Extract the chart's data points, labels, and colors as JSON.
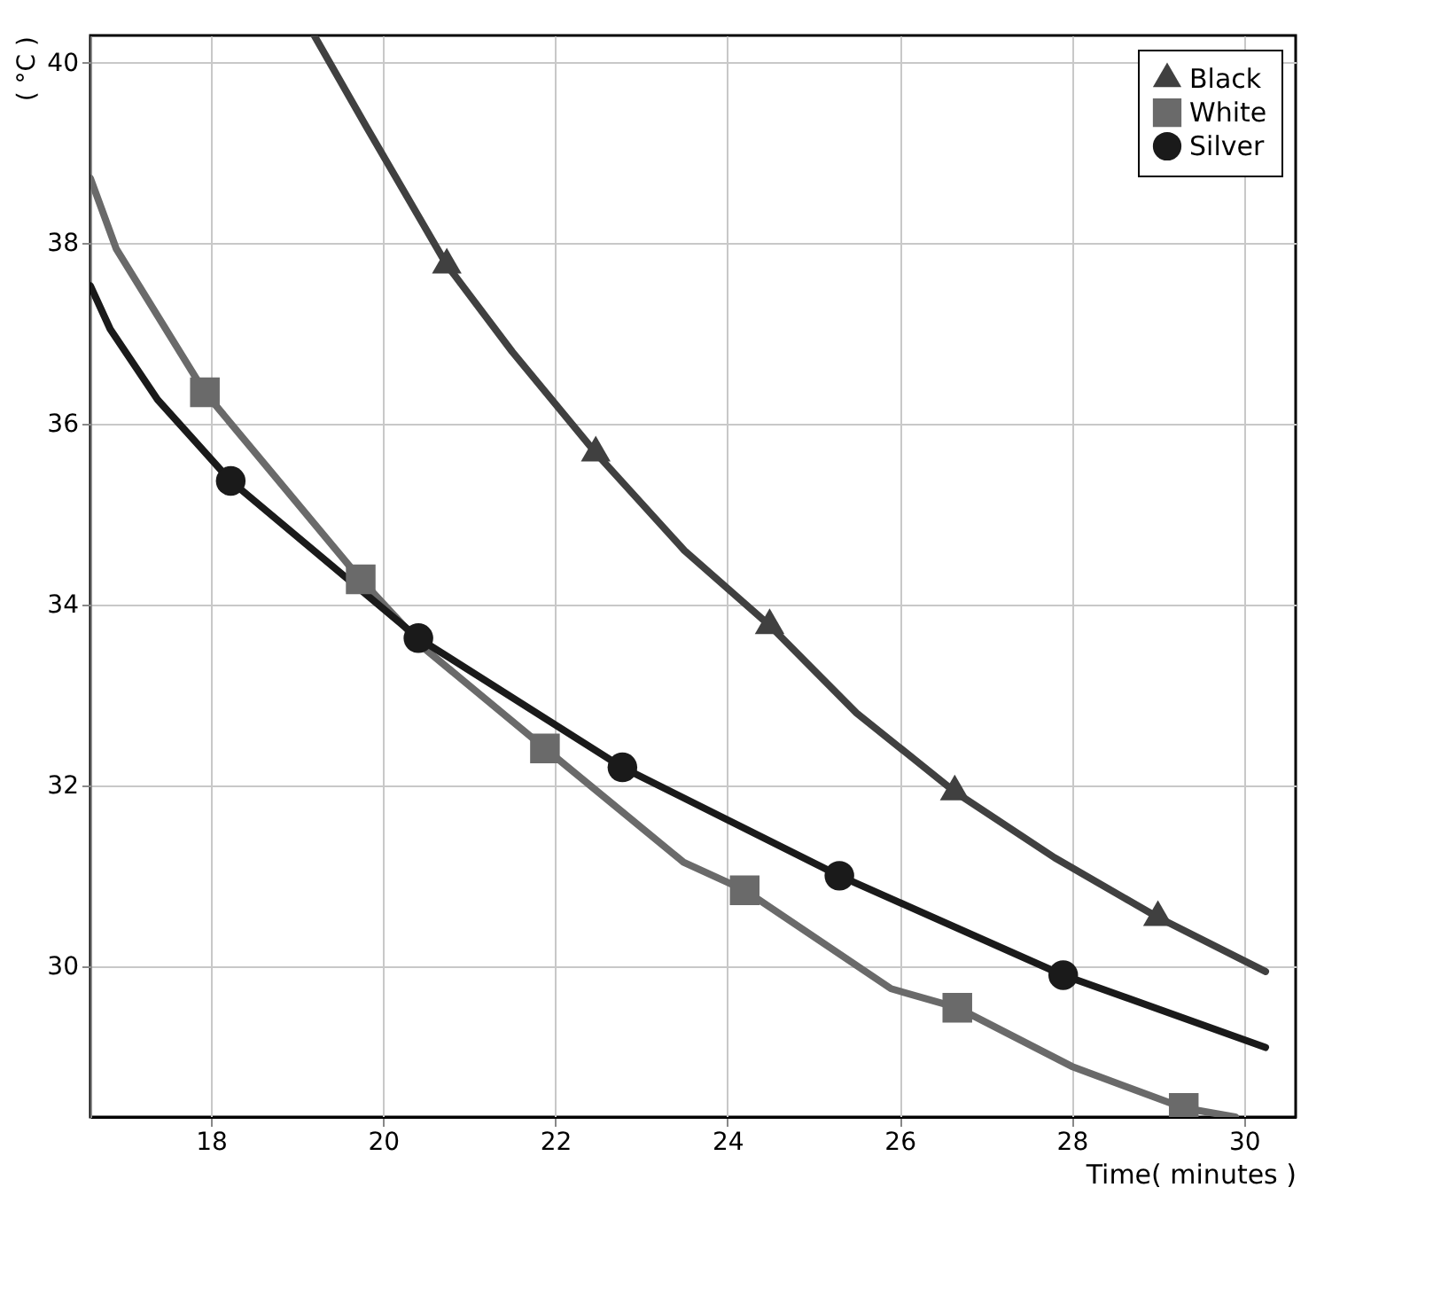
{
  "chart_data": {
    "type": "line",
    "xlabel": "Time( minutes )",
    "ylabel": "( °C )",
    "xlim": [
      16.6,
      30.6
    ],
    "ylim": [
      28.33,
      40.3
    ],
    "xticks": [
      18,
      20,
      22,
      24,
      26,
      28,
      30
    ],
    "yticks": [
      30,
      32,
      34,
      36,
      38,
      40
    ],
    "grid": true,
    "legend": "top right",
    "line_style": "solid",
    "series": [
      {
        "color": "#404040",
        "x": [
          19.2,
          19.8,
          20.74,
          21.5,
          22.47,
          23.5,
          24.49,
          25.5,
          26.64,
          27.8,
          29.0,
          30.25
        ],
        "values": [
          40.3,
          39.3,
          37.76,
          36.8,
          35.68,
          34.6,
          33.77,
          32.8,
          31.93,
          31.2,
          30.54,
          29.94
        ]
      },
      {
        "color": "#6a6a6a",
        "x": [
          16.6,
          16.9,
          17.93,
          19.74,
          20.5,
          21.88,
          22.66,
          23.49,
          24.2,
          25.9,
          26.67,
          28.0,
          29.3,
          29.9
        ],
        "values": [
          38.72,
          37.94,
          36.35,
          34.28,
          33.5,
          32.41,
          31.8,
          31.15,
          30.84,
          29.75,
          29.54,
          28.89,
          28.43,
          28.33
        ]
      },
      {
        "color": "#1a1a1a",
        "x": [
          16.6,
          16.83,
          17.38,
          18.23,
          20.41,
          22.78,
          25.3,
          27.9,
          30.25
        ],
        "values": [
          37.53,
          37.05,
          36.27,
          35.37,
          33.63,
          32.2,
          31.0,
          29.9,
          29.1
        ]
      },
      {
        "type": "scatter",
        "name": "Black",
        "color": "#404040",
        "marker": "triangle",
        "x": [
          20.74,
          22.47,
          24.49,
          26.64,
          29.0
        ],
        "values": [
          37.76,
          35.68,
          33.77,
          31.93,
          30.54
        ]
      },
      {
        "type": "scatter",
        "name": "White",
        "color": "#6a6a6a",
        "marker": "square",
        "x": [
          17.93,
          19.74,
          21.88,
          24.2,
          26.67,
          29.3
        ],
        "values": [
          36.35,
          34.28,
          32.41,
          30.84,
          29.54,
          28.43
        ]
      },
      {
        "type": "scatter",
        "name": "Silver",
        "color": "#1a1a1a",
        "marker": "circle",
        "x": [
          18.23,
          20.41,
          22.78,
          25.3,
          27.9
        ],
        "values": [
          35.37,
          33.63,
          32.2,
          31.0,
          29.9
        ]
      }
    ]
  }
}
